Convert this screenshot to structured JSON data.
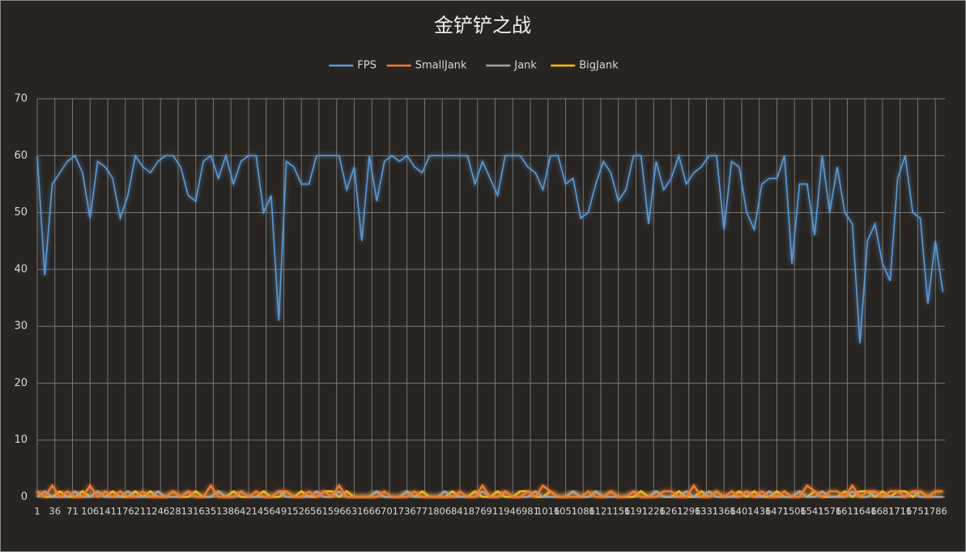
{
  "chart_data": {
    "type": "line",
    "title": "金铲铲之战",
    "x": [
      1,
      16,
      31,
      46,
      61,
      76,
      91,
      106,
      121,
      136,
      151,
      166,
      181,
      196,
      211,
      226,
      241,
      256,
      271,
      286,
      301,
      316,
      331,
      346,
      361,
      376,
      391,
      406,
      421,
      436,
      451,
      466,
      481,
      496,
      511,
      526,
      541,
      556,
      571,
      586,
      601,
      616,
      631,
      646,
      661,
      676,
      691,
      706,
      721,
      736,
      751,
      766,
      781,
      796,
      811,
      826,
      841,
      856,
      871,
      886,
      901,
      916,
      931,
      946,
      961,
      976,
      991,
      1006,
      1021,
      1036,
      1051,
      1066,
      1081,
      1096,
      1111,
      1126,
      1141,
      1156,
      1171,
      1186,
      1201,
      1216,
      1231,
      1246,
      1261,
      1276,
      1291,
      1306,
      1321,
      1336,
      1351,
      1366,
      1381,
      1396,
      1411,
      1426,
      1441,
      1456,
      1471,
      1486,
      1501,
      1516,
      1531,
      1546,
      1561,
      1576,
      1591,
      1606,
      1621,
      1636,
      1651,
      1666,
      1681,
      1696,
      1711,
      1726,
      1741,
      1756,
      1771,
      1786,
      1801
    ],
    "series": [
      {
        "name": "FPS",
        "color": "#5b9bd5",
        "values": [
          60,
          39,
          55,
          57,
          59,
          60,
          57,
          49,
          59,
          58,
          56,
          49,
          53,
          60,
          58,
          57,
          59,
          60,
          60,
          58,
          53,
          52,
          59,
          60,
          56,
          60,
          55,
          59,
          60,
          60,
          50,
          53,
          31,
          59,
          58,
          55,
          55,
          60,
          60,
          60,
          60,
          54,
          58,
          45,
          60,
          52,
          59,
          60,
          59,
          60,
          58,
          57,
          60,
          60,
          60,
          60,
          60,
          60,
          55,
          59,
          56,
          53,
          60,
          60,
          60,
          58,
          57,
          54,
          60,
          60,
          55,
          56,
          49,
          50,
          55,
          59,
          57,
          52,
          54,
          60,
          60,
          48,
          59,
          54,
          56,
          60,
          55,
          57,
          58,
          60,
          60,
          47,
          59,
          58,
          50,
          47,
          55,
          56,
          56,
          60,
          41,
          55,
          55,
          46,
          60,
          50,
          58,
          50,
          48,
          27,
          45,
          48,
          41,
          38,
          56,
          60,
          50,
          49,
          34,
          45,
          36
        ]
      },
      {
        "name": "SmallJank",
        "color": "#ed7d31",
        "values": [
          1,
          0,
          2,
          0,
          1,
          0,
          0,
          2,
          0,
          1,
          0,
          1,
          0,
          0,
          1,
          0,
          0,
          0,
          1,
          0,
          1,
          0,
          0,
          2,
          0,
          0,
          0,
          1,
          0,
          1,
          0,
          0,
          1,
          1,
          0,
          0,
          1,
          0,
          1,
          0,
          2,
          0,
          0,
          0,
          0,
          0,
          1,
          0,
          0,
          0,
          1,
          0,
          0,
          0,
          0,
          0,
          1,
          0,
          0,
          2,
          0,
          0,
          1,
          0,
          0,
          1,
          0,
          2,
          1,
          0,
          0,
          0,
          0,
          1,
          0,
          0,
          1,
          0,
          0,
          1,
          0,
          0,
          0,
          1,
          1,
          0,
          0,
          2,
          0,
          0,
          1,
          0,
          1,
          0,
          1,
          0,
          1,
          0,
          0,
          1,
          0,
          0,
          2,
          1,
          0,
          1,
          1,
          0,
          2,
          0,
          1,
          1,
          0,
          1,
          1,
          0,
          1,
          1,
          0,
          1,
          1
        ]
      },
      {
        "name": "Jank",
        "color": "#a5a5a5",
        "values": [
          0,
          1,
          0,
          0,
          0,
          1,
          0,
          0,
          1,
          0,
          0,
          0,
          1,
          0,
          0,
          0,
          1,
          0,
          0,
          0,
          1,
          0,
          0,
          0,
          1,
          0,
          0,
          1,
          0,
          0,
          0,
          0,
          1,
          0,
          0,
          0,
          0,
          1,
          0,
          0,
          1,
          0,
          0,
          0,
          0,
          1,
          0,
          0,
          0,
          1,
          0,
          0,
          0,
          0,
          1,
          0,
          0,
          0,
          0,
          1,
          0,
          0,
          1,
          0,
          0,
          0,
          1,
          0,
          0,
          0,
          0,
          1,
          0,
          0,
          1,
          0,
          0,
          0,
          0,
          1,
          0,
          0,
          1,
          0,
          0,
          0,
          1,
          0,
          0,
          1,
          0,
          0,
          0,
          0,
          1,
          0,
          0,
          1,
          0,
          0,
          0,
          1,
          0,
          0,
          1,
          0,
          0,
          0,
          1,
          0,
          0,
          1,
          0,
          0,
          0,
          0,
          1,
          0,
          0,
          0,
          0
        ]
      },
      {
        "name": "BigJank",
        "color": "#ffc000",
        "values": [
          1,
          0,
          0,
          1,
          0,
          0,
          1,
          0,
          1,
          0,
          1,
          0,
          0,
          1,
          0,
          1,
          0,
          0,
          1,
          0,
          0,
          1,
          0,
          0,
          1,
          0,
          1,
          0,
          0,
          0,
          1,
          0,
          0,
          1,
          0,
          1,
          0,
          0,
          1,
          1,
          0,
          1,
          0,
          0,
          0,
          1,
          0,
          0,
          0,
          1,
          0,
          1,
          0,
          0,
          0,
          1,
          0,
          0,
          1,
          0,
          0,
          1,
          0,
          0,
          1,
          1,
          0,
          0,
          1,
          0,
          0,
          1,
          0,
          0,
          1,
          0,
          1,
          0,
          0,
          0,
          1,
          0,
          1,
          0,
          0,
          1,
          0,
          0,
          1,
          0,
          1,
          0,
          0,
          1,
          0,
          1,
          0,
          0,
          1,
          0,
          0,
          1,
          0,
          1,
          0,
          0,
          0,
          1,
          0,
          1,
          1,
          0,
          1,
          0,
          1,
          1,
          0,
          1,
          0,
          1,
          1
        ]
      }
    ],
    "xlim": [
      1,
      1805
    ],
    "xticks": [
      1,
      36,
      71,
      106,
      141,
      176,
      211,
      246,
      281,
      316,
      351,
      386,
      421,
      456,
      491,
      526,
      561,
      596,
      631,
      666,
      701,
      736,
      771,
      806,
      841,
      876,
      911,
      946,
      981,
      1016,
      1051,
      1086,
      1121,
      1156,
      1191,
      1226,
      1261,
      1296,
      1331,
      1366,
      1401,
      1436,
      1471,
      1506,
      1541,
      1576,
      1611,
      1646,
      1681,
      1716,
      1751,
      1786
    ],
    "ylim": [
      0,
      70
    ],
    "yticks": [
      0,
      10,
      20,
      30,
      40,
      50,
      60,
      70
    ],
    "grid": true,
    "legend": "top"
  }
}
